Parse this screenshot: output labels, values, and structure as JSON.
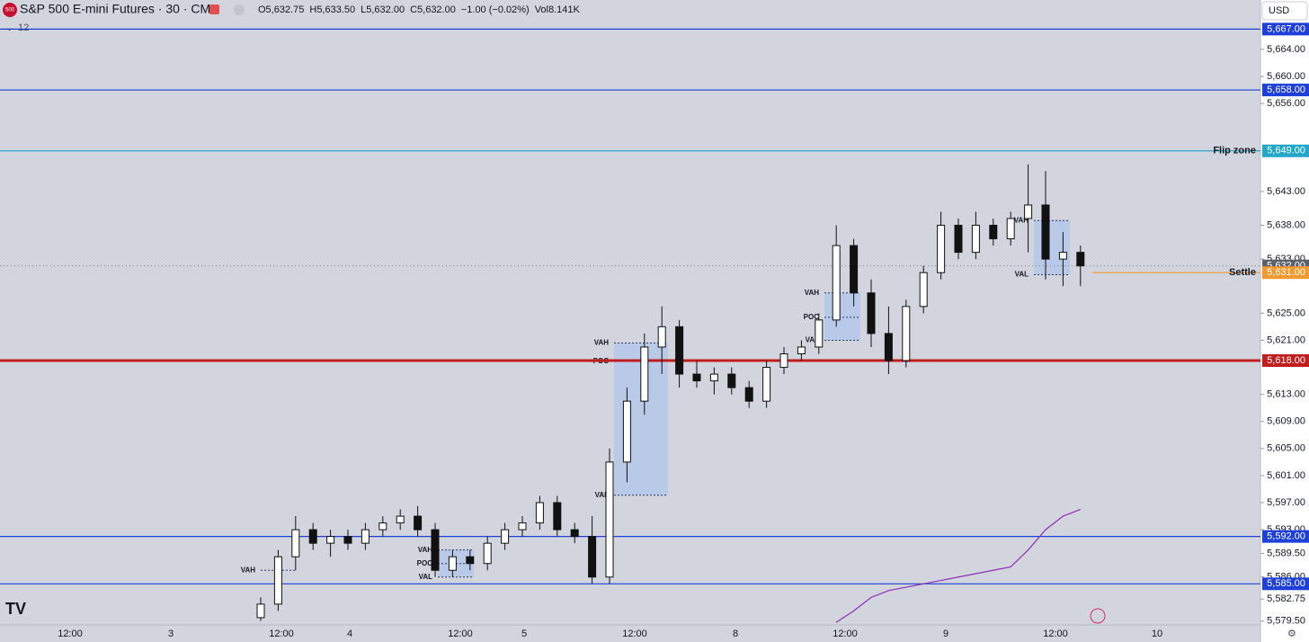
{
  "header": {
    "badge": "500",
    "symbol": "S&P 500 E-mini Futures · 30 · CME",
    "ohlc": [
      "O5,632.75",
      "H5,633.50",
      "L5,632.00",
      "C5,632.00",
      "−1.00 (−0.02%)",
      "Vol8.141K"
    ],
    "indicators": "12",
    "currency": "USD"
  },
  "chart_data": {
    "type": "candlestick",
    "ylim": [
      5576.4,
      5671.3
    ],
    "yticks": [
      {
        "value": 5664,
        "label": "5,664.00"
      },
      {
        "value": 5660,
        "label": "5,660.00"
      },
      {
        "value": 5656,
        "label": "5,656.00"
      },
      {
        "value": 5643,
        "label": "5,643.00"
      },
      {
        "value": 5638,
        "label": "5,638.00"
      },
      {
        "value": 5633,
        "label": "5,633.00"
      },
      {
        "value": 5625,
        "label": "5,625.00"
      },
      {
        "value": 5621,
        "label": "5,621.00"
      },
      {
        "value": 5613,
        "label": "5,613.00"
      },
      {
        "value": 5609,
        "label": "5,609.00"
      },
      {
        "value": 5605,
        "label": "5,605.00"
      },
      {
        "value": 5601,
        "label": "5,601.00"
      },
      {
        "value": 5597,
        "label": "5,597.00"
      },
      {
        "value": 5593,
        "label": "5,593.00"
      },
      {
        "value": 5589.5,
        "label": "5,589.50"
      },
      {
        "value": 5586,
        "label": "5,586.00"
      },
      {
        "value": 5582.75,
        "label": "5,582.75"
      },
      {
        "value": 5579.5,
        "label": "5,579.50"
      }
    ],
    "xtick_labels": [
      "12:00",
      "3",
      "12:00",
      "4",
      "12:00",
      "5",
      "12:00",
      "8",
      "12:00",
      "9",
      "12:00",
      "10"
    ],
    "levels": [
      {
        "price": {
          "value": 5667,
          "label": "5,667.00"
        },
        "color": "#1e40d8"
      },
      {
        "price": {
          "value": 5658,
          "label": "5,658.00"
        },
        "color": "#1e40d8"
      },
      {
        "price": {
          "value": 5649,
          "label": "5,649.00"
        },
        "color": "#22a7c9",
        "text": "Flip zone"
      },
      {
        "price": {
          "value": 5632,
          "label": "5,632.00"
        },
        "color": "#8a8a8a"
      },
      {
        "price": {
          "value": 5631,
          "label": "5,631.00"
        },
        "color": "#f29a2e",
        "text": "Settle"
      },
      {
        "price": {
          "value": 5618,
          "label": "5,618.00"
        },
        "color": "#c21d1d"
      },
      {
        "price": {
          "value": 5592,
          "label": "5,592.00"
        },
        "color": "#1e40d8"
      },
      {
        "price": {
          "value": 5585,
          "label": "5,585.00"
        },
        "color": "#1e40d8"
      }
    ],
    "profiles": [
      {
        "vah": {
          "text": "VAH",
          "price": 5587
        }
      },
      {
        "vah": {
          "text": "VAH",
          "price": 5590
        },
        "poc": {
          "text": "POC",
          "price": 5588
        },
        "val": {
          "text": "VAL",
          "price": 5586
        }
      },
      {
        "vah": {
          "text": "VAH",
          "price": 5620.6
        },
        "poc": {
          "text": "POC",
          "price": 5617.9
        },
        "val": {
          "text": "VAL",
          "price": 5598.1
        }
      },
      {
        "vah": {
          "text": "VAH",
          "price": 5628
        },
        "poc": {
          "text": "POC",
          "price": 5624.4
        },
        "val": {
          "text": "VAL",
          "price": 5621
        }
      },
      {
        "vah": {
          "text": "VAH",
          "price": 5638.7
        },
        "val": {
          "text": "VAL",
          "price": 5630.7
        }
      }
    ],
    "candles": [
      [
        5580,
        5583,
        5579.5,
        5582
      ],
      [
        5582,
        5590,
        5581,
        5589
      ],
      [
        5589,
        5595,
        5587,
        5593
      ],
      [
        5593,
        5594,
        5590,
        5591
      ],
      [
        5591,
        5593,
        5589,
        5592
      ],
      [
        5592,
        5593,
        5590,
        5591
      ],
      [
        5591,
        5594,
        5590,
        5593
      ],
      [
        5593,
        5595,
        5592,
        5594
      ],
      [
        5594,
        5596,
        5593,
        5595
      ],
      [
        5595,
        5596.5,
        5592,
        5593
      ],
      [
        5593,
        5594,
        5586,
        5587
      ],
      [
        5587,
        5590,
        5586,
        5589
      ],
      [
        5589,
        5590,
        5587,
        5588
      ],
      [
        5588,
        5592,
        5587,
        5591
      ],
      [
        5591,
        5594,
        5590,
        5593
      ],
      [
        5593,
        5595,
        5592,
        5594
      ],
      [
        5594,
        5598,
        5593,
        5597
      ],
      [
        5597,
        5598,
        5592,
        5593
      ],
      [
        5593,
        5594,
        5591,
        5592
      ],
      [
        5592,
        5595,
        5585,
        5586
      ],
      [
        5586,
        5605,
        5585,
        5603
      ],
      [
        5603,
        5614,
        5600,
        5612
      ],
      [
        5612,
        5622,
        5610,
        5620
      ],
      [
        5620,
        5626,
        5616,
        5623
      ],
      [
        5623,
        5624,
        5614,
        5616
      ],
      [
        5616,
        5618,
        5614,
        5615
      ],
      [
        5615,
        5617,
        5613,
        5616
      ],
      [
        5616,
        5617,
        5613,
        5614
      ],
      [
        5614,
        5615,
        5611,
        5612
      ],
      [
        5612,
        5618,
        5611,
        5617
      ],
      [
        5617,
        5620,
        5616,
        5619
      ],
      [
        5619,
        5621,
        5618,
        5620
      ],
      [
        5620,
        5625,
        5619,
        5624
      ],
      [
        5624,
        5638,
        5623,
        5635
      ],
      [
        5635,
        5636,
        5626,
        5628
      ],
      [
        5628,
        5630,
        5620,
        5622
      ],
      [
        5622,
        5626,
        5616,
        5618
      ],
      [
        5618,
        5627,
        5617,
        5626
      ],
      [
        5626,
        5632,
        5625,
        5631
      ],
      [
        5631,
        5640,
        5630,
        5638
      ],
      [
        5638,
        5639,
        5633,
        5634
      ],
      [
        5634,
        5640,
        5633,
        5638
      ],
      [
        5638,
        5639,
        5635,
        5636
      ],
      [
        5636,
        5640,
        5635,
        5639
      ],
      [
        5639,
        5647,
        5634,
        5641
      ],
      [
        5641,
        5646,
        5630,
        5633
      ],
      [
        5633,
        5637,
        5629,
        5634
      ],
      [
        5634,
        5635,
        5629,
        5632
      ]
    ],
    "indicator_line": {
      "color": "#8e2fb5",
      "values": [
        null,
        null,
        null,
        null,
        null,
        null,
        null,
        null,
        null,
        null,
        null,
        null,
        null,
        null,
        null,
        null,
        null,
        null,
        null,
        null,
        null,
        null,
        null,
        null,
        null,
        null,
        null,
        null,
        null,
        null,
        null,
        null,
        null,
        5579.3,
        5581,
        5583,
        5584,
        5584.5,
        5585,
        5585.5,
        5586,
        5586.5,
        5587,
        5587.5,
        5590,
        5593,
        5595,
        5596
      ]
    }
  }
}
